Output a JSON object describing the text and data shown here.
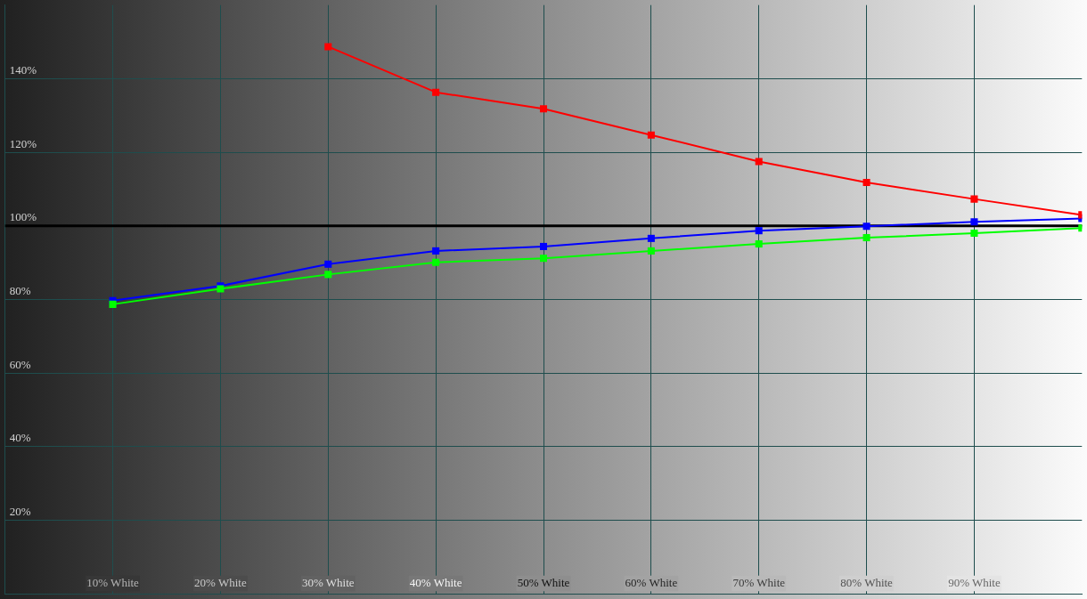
{
  "chart_data": {
    "type": "line",
    "x": [
      10,
      20,
      30,
      40,
      50,
      60,
      70,
      80,
      90,
      100
    ],
    "series": [
      {
        "color": "#ff0000",
        "values": [
          null,
          null,
          148.7,
          136.3,
          131.8,
          124.7,
          117.5,
          111.8,
          107.3,
          103
        ]
      },
      {
        "color": "#00ff00",
        "values": [
          78.7,
          82.9,
          86.8,
          90.1,
          91.2,
          93.2,
          95.1,
          96.8,
          98,
          99.4
        ]
      },
      {
        "color": "#0000ff",
        "values": [
          79.7,
          83.7,
          89.6,
          93.2,
          94.4,
          96.6,
          98.7,
          99.9,
          101.1,
          102
        ]
      }
    ],
    "xlim": [
      0,
      100
    ],
    "xticks": [
      {
        "value": 10,
        "label": "10% White"
      },
      {
        "value": 20,
        "label": "20% White"
      },
      {
        "value": 30,
        "label": "30% White"
      },
      {
        "value": 40,
        "label": "40% White"
      },
      {
        "value": 50,
        "label": "50% White"
      },
      {
        "value": 60,
        "label": "60% White"
      },
      {
        "value": 70,
        "label": "70% White"
      },
      {
        "value": 80,
        "label": "80% White"
      },
      {
        "value": 90,
        "label": "90% White"
      }
    ],
    "ylim": [
      0,
      160
    ],
    "yticks": [
      {
        "value": 20,
        "label": "20%"
      },
      {
        "value": 40,
        "label": "40%"
      },
      {
        "value": 60,
        "label": "60%"
      },
      {
        "value": 80,
        "label": "80%"
      },
      {
        "value": 100,
        "label": "100%"
      },
      {
        "value": 120,
        "label": "120%"
      },
      {
        "value": 140,
        "label": "140%"
      }
    ],
    "grid": true,
    "marker": "square",
    "ref_lines": [
      {
        "axis": "y",
        "value": 100,
        "color": "#000000"
      }
    ]
  }
}
